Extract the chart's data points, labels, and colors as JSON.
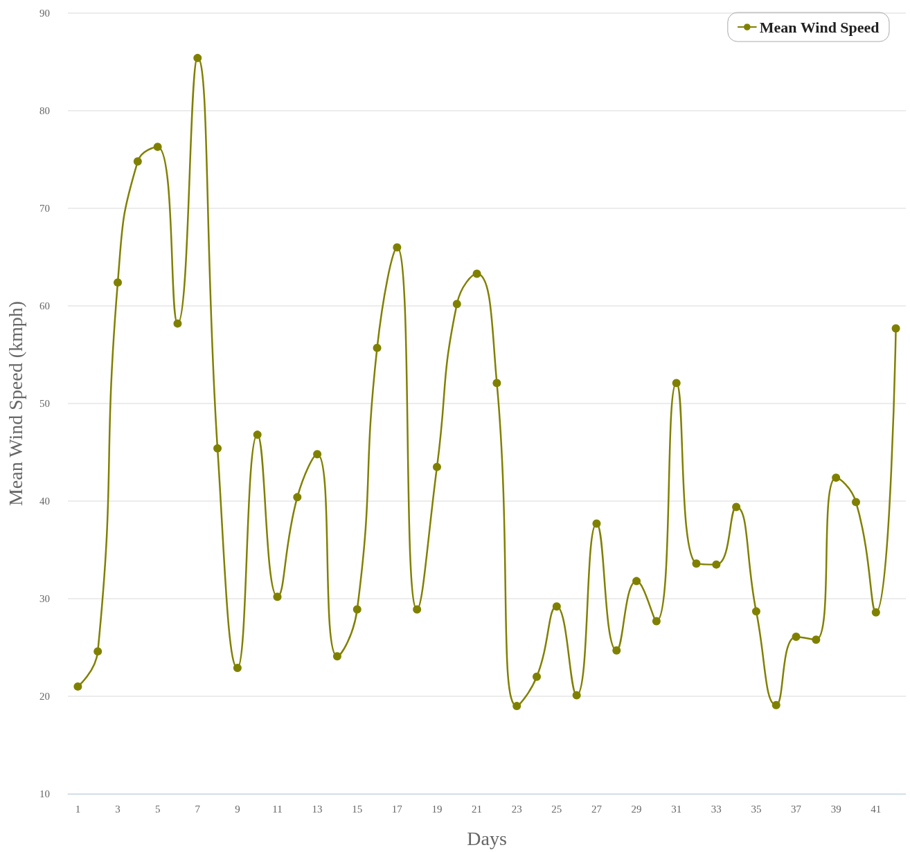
{
  "chart_data": {
    "type": "line",
    "xlabel": "Days",
    "ylabel": "Mean Wind Speed (kmph)",
    "x": [
      1,
      2,
      3,
      4,
      5,
      6,
      7,
      8,
      9,
      10,
      11,
      12,
      13,
      14,
      15,
      16,
      17,
      18,
      19,
      20,
      21,
      22,
      23,
      24,
      25,
      26,
      27,
      28,
      29,
      30,
      31,
      32,
      33,
      34,
      35,
      36,
      37,
      38,
      39,
      40,
      41,
      42
    ],
    "series": [
      {
        "name": "Mean Wind Speed",
        "color": "#808000",
        "values": [
          21,
          24.6,
          62.4,
          74.8,
          76.3,
          58.2,
          85.4,
          45.4,
          22.9,
          46.8,
          30.2,
          40.4,
          44.8,
          24.1,
          28.9,
          55.7,
          66,
          28.9,
          43.5,
          60.2,
          63.3,
          52.1,
          19,
          22,
          29.2,
          20.1,
          37.7,
          24.7,
          31.8,
          27.7,
          52.1,
          33.6,
          33.5,
          39.4,
          28.7,
          19.1,
          26.1,
          25.8,
          42.4,
          39.9,
          28.6,
          57.7
        ]
      }
    ],
    "xlim": [
      0.5,
      42.5
    ],
    "xticks": [
      1,
      3,
      5,
      7,
      9,
      11,
      13,
      15,
      17,
      19,
      21,
      23,
      25,
      27,
      29,
      31,
      33,
      35,
      37,
      39,
      41
    ],
    "ylim": [
      10,
      90
    ],
    "yticks": [
      10,
      20,
      30,
      40,
      50,
      60,
      70,
      80,
      90
    ],
    "grid": "y",
    "legend": "top right",
    "marker": "circle",
    "line_style": "solid"
  }
}
